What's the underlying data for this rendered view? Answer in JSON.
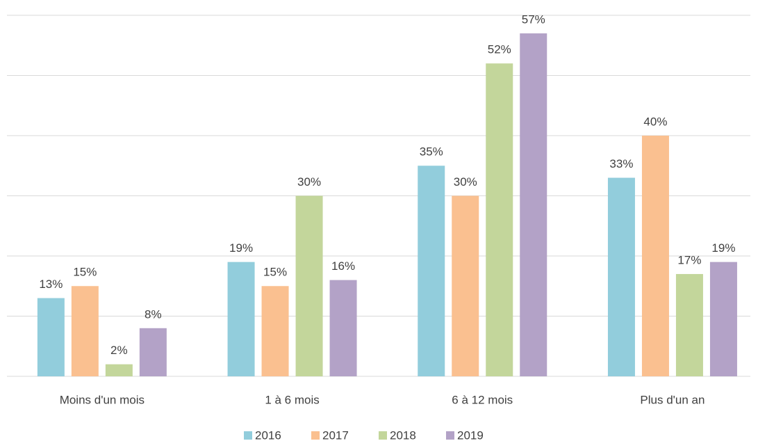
{
  "chart_data": {
    "type": "bar",
    "categories": [
      "Moins d'un mois",
      "1 à 6 mois",
      "6 à 12 mois",
      "Plus d'un an"
    ],
    "series": [
      {
        "name": "2016",
        "color": "#92cddc",
        "values": [
          13,
          19,
          35,
          33
        ],
        "value_labels": [
          "13%",
          "19%",
          "35%",
          "33%"
        ]
      },
      {
        "name": "2017",
        "color": "#fac090",
        "values": [
          15,
          15,
          30,
          40
        ],
        "value_labels": [
          "15%",
          "15%",
          "30%",
          "40%"
        ]
      },
      {
        "name": "2018",
        "color": "#c3d69b",
        "values": [
          2,
          30,
          52,
          17
        ],
        "value_labels": [
          "2%",
          "30%",
          "52%",
          "17%"
        ]
      },
      {
        "name": "2019",
        "color": "#b3a2c7",
        "values": [
          8,
          16,
          57,
          19
        ],
        "value_labels": [
          "8%",
          "16%",
          "57%",
          "19%"
        ]
      }
    ],
    "ylim": [
      0,
      60
    ],
    "yticks": [
      0,
      10,
      20,
      30,
      40,
      50,
      60
    ],
    "grid": true,
    "legend": "bottom"
  }
}
